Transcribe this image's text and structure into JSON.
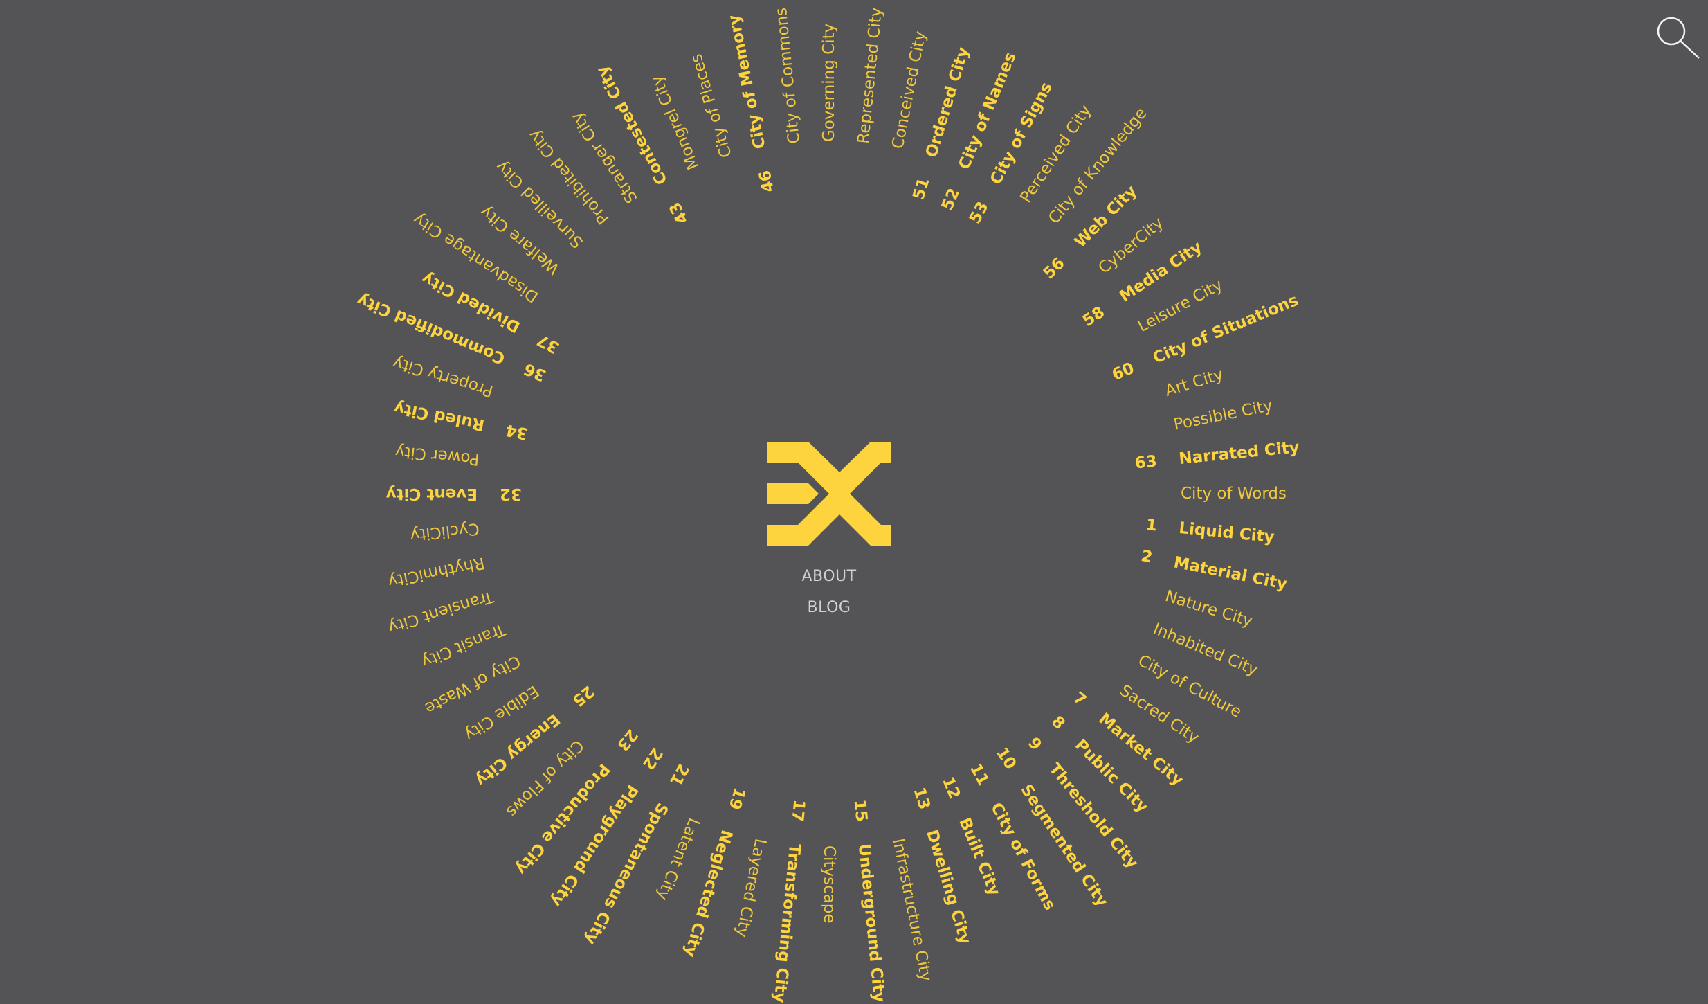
{
  "nav": {
    "about": "ABOUT",
    "blog": "BLOG"
  },
  "icons": {
    "logo": "ex-logo",
    "search": "search-icon"
  },
  "colors": {
    "background": "#545456",
    "accent": "#fdd33e",
    "nav_text": "#d2d2d4"
  },
  "cities": [
    {
      "number": "1",
      "label": "Liquid City"
    },
    {
      "number": "2",
      "label": "Material City"
    },
    {
      "number": "",
      "label": "Nature City"
    },
    {
      "number": "",
      "label": "Inhabited City"
    },
    {
      "number": "",
      "label": "City of Culture"
    },
    {
      "number": "",
      "label": "Sacred City"
    },
    {
      "number": "7",
      "label": "Market City"
    },
    {
      "number": "8",
      "label": "Public City"
    },
    {
      "number": "9",
      "label": "Threshold City"
    },
    {
      "number": "10",
      "label": "Segmented City"
    },
    {
      "number": "11",
      "label": "City of Forms"
    },
    {
      "number": "12",
      "label": "Built City"
    },
    {
      "number": "13",
      "label": "Dwelling City"
    },
    {
      "number": "",
      "label": "Infrastructure City"
    },
    {
      "number": "15",
      "label": "Underground City"
    },
    {
      "number": "",
      "label": "Cityscape"
    },
    {
      "number": "17",
      "label": "Transforming City"
    },
    {
      "number": "",
      "label": "Layered City"
    },
    {
      "number": "19",
      "label": "Neglected City"
    },
    {
      "number": "",
      "label": "Latent City"
    },
    {
      "number": "21",
      "label": "Spontaneous City"
    },
    {
      "number": "22",
      "label": "Playground City"
    },
    {
      "number": "23",
      "label": "Productive City"
    },
    {
      "number": "",
      "label": "City of Flows"
    },
    {
      "number": "25",
      "label": "Energy City"
    },
    {
      "number": "",
      "label": "Edible City"
    },
    {
      "number": "",
      "label": "City of Waste"
    },
    {
      "number": "",
      "label": "Transit City"
    },
    {
      "number": "",
      "label": "Transient City"
    },
    {
      "number": "",
      "label": "RhythmiCity"
    },
    {
      "number": "",
      "label": "CycliCity"
    },
    {
      "number": "32",
      "label": "Event City"
    },
    {
      "number": "",
      "label": "Power City"
    },
    {
      "number": "34",
      "label": "Ruled City"
    },
    {
      "number": "",
      "label": "Property City"
    },
    {
      "number": "36",
      "label": "Commodified City"
    },
    {
      "number": "37",
      "label": "Divided City"
    },
    {
      "number": "",
      "label": "Disadvantage City"
    },
    {
      "number": "",
      "label": "Welfare City"
    },
    {
      "number": "",
      "label": "Surveilled City"
    },
    {
      "number": "",
      "label": "Prohibited City"
    },
    {
      "number": "",
      "label": "Stranger City"
    },
    {
      "number": "43",
      "label": "Contested City"
    },
    {
      "number": "",
      "label": "Mongrel City"
    },
    {
      "number": "",
      "label": "City of Places"
    },
    {
      "number": "46",
      "label": "City of Memory"
    },
    {
      "number": "",
      "label": "City of Commons"
    },
    {
      "number": "",
      "label": "Governing City"
    },
    {
      "number": "",
      "label": "Represented City"
    },
    {
      "number": "",
      "label": "Conceived City"
    },
    {
      "number": "51",
      "label": "Ordered City"
    },
    {
      "number": "52",
      "label": "City of Names"
    },
    {
      "number": "53",
      "label": "City of Signs"
    },
    {
      "number": "",
      "label": "Perceived City"
    },
    {
      "number": "",
      "label": "City of Knowledge"
    },
    {
      "number": "56",
      "label": "Web City"
    },
    {
      "number": "",
      "label": "CyberCity"
    },
    {
      "number": "58",
      "label": "Media City"
    },
    {
      "number": "",
      "label": "Leisure City"
    },
    {
      "number": "60",
      "label": "City of Situations"
    },
    {
      "number": "",
      "label": "Art City"
    },
    {
      "number": "",
      "label": "Possible City"
    },
    {
      "number": "63",
      "label": "Narrated City"
    },
    {
      "number": "",
      "label": "City of Words"
    }
  ]
}
